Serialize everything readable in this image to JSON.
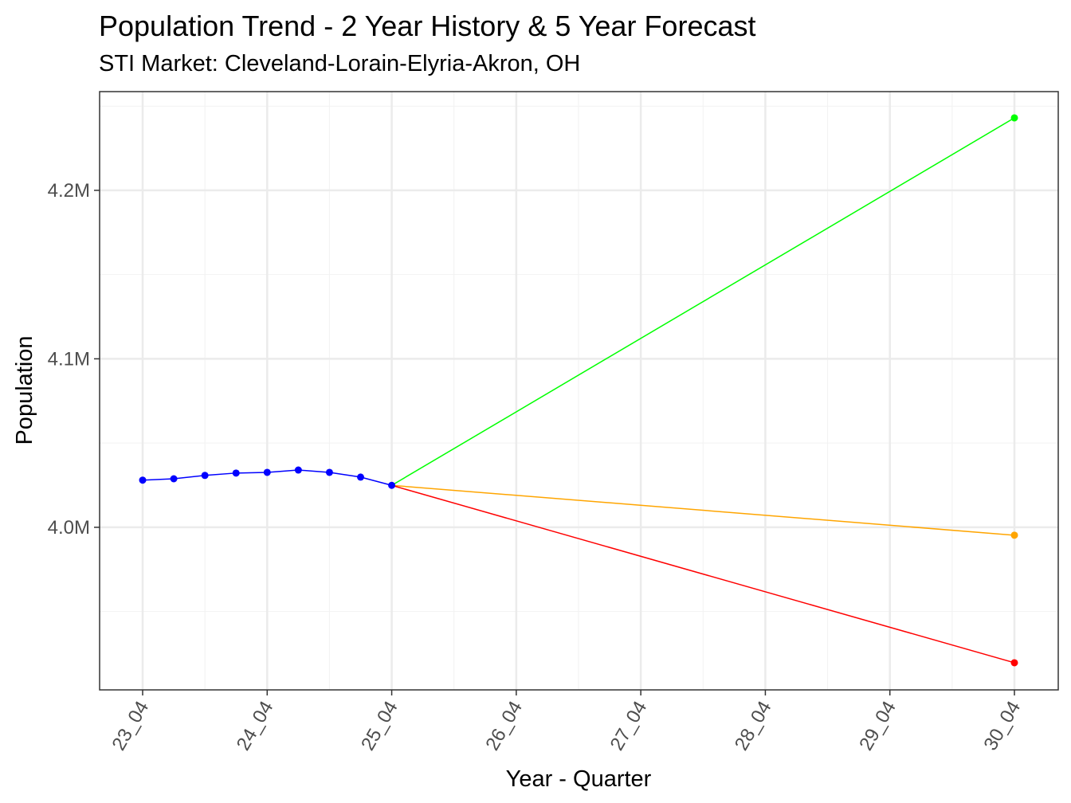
{
  "chart_data": {
    "type": "line",
    "title": "Population Trend - 2 Year History & 5 Year Forecast",
    "subtitle": "STI Market: Cleveland-Lorain-Elyria-Akron, OH",
    "xlabel": "Year - Quarter",
    "ylabel": "Population",
    "x_tick_labels": [
      "23_04",
      "24_04",
      "25_04",
      "26_04",
      "27_04",
      "28_04",
      "29_04",
      "30_04"
    ],
    "y_ticks": [
      4000000,
      4100000,
      4200000
    ],
    "y_tick_labels": [
      "4.0M",
      "4.1M",
      "4.2M"
    ],
    "ylim": [
      3903500,
      4258600
    ],
    "grid": true,
    "series": [
      {
        "color": "#0000ff",
        "x": [
          "23_04",
          "24_01",
          "24_02",
          "24_03",
          "24_04",
          "25_01",
          "25_02",
          "25_03",
          "25_04"
        ],
        "values": [
          4028000,
          4028800,
          4030800,
          4032200,
          4032600,
          4034000,
          4032600,
          4029800,
          4024900
        ]
      },
      {
        "color": "#00ff00",
        "x": [
          "25_04",
          "30_04"
        ],
        "values": [
          4024900,
          4243000
        ]
      },
      {
        "color": "#ffa500",
        "x": [
          "25_04",
          "30_04"
        ],
        "values": [
          4024900,
          3995300
        ]
      },
      {
        "color": "#ff0000",
        "x": [
          "25_04",
          "30_04"
        ],
        "values": [
          4024900,
          3919600
        ]
      }
    ]
  }
}
